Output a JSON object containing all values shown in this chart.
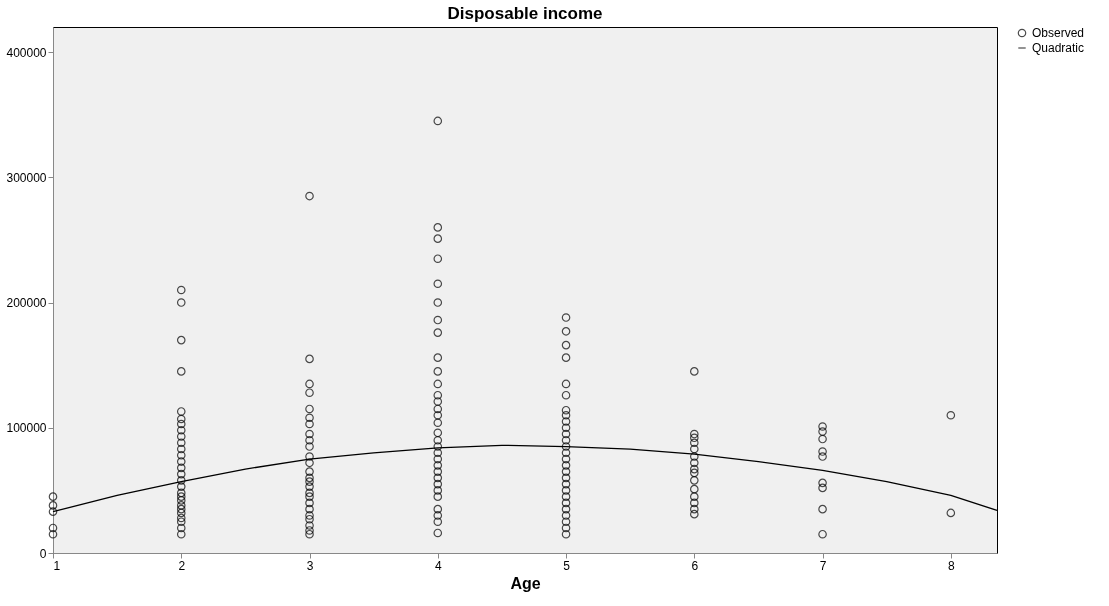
{
  "chart_data": {
    "type": "scatter",
    "title": "Disposable income",
    "xlabel": "Age",
    "xlim": [
      1,
      8.36
    ],
    "xticks": [
      1,
      2,
      3,
      4,
      5,
      6,
      7,
      8
    ],
    "ylim": [
      0,
      420000
    ],
    "yticks": [
      0,
      100000,
      200000,
      300000,
      400000
    ],
    "series": [
      {
        "name": "Observed",
        "color": "#000000",
        "marker": "circle",
        "x": [
          1,
          1,
          1,
          1,
          1,
          2,
          2,
          2,
          2,
          2,
          2,
          2,
          2,
          2,
          2,
          2,
          2,
          2,
          2,
          2,
          2,
          2,
          2,
          2,
          2,
          2,
          2,
          2,
          2,
          2,
          2,
          2,
          3,
          3,
          3,
          3,
          3,
          3,
          3,
          3,
          3,
          3,
          3,
          3,
          3,
          3,
          3,
          3,
          3,
          3,
          3,
          3,
          3,
          3,
          3,
          3,
          3,
          4,
          4,
          4,
          4,
          4,
          4,
          4,
          4,
          4,
          4,
          4,
          4,
          4,
          4,
          4,
          4,
          4,
          4,
          4,
          4,
          4,
          4,
          4,
          4,
          4,
          4,
          4,
          4,
          4,
          4,
          4,
          5,
          5,
          5,
          5,
          5,
          5,
          5,
          5,
          5,
          5,
          5,
          5,
          5,
          5,
          5,
          5,
          5,
          5,
          5,
          5,
          5,
          5,
          5,
          5,
          5,
          5,
          5,
          6,
          6,
          6,
          6,
          6,
          6,
          6,
          6,
          6,
          6,
          6,
          6,
          6,
          6,
          6,
          7,
          7,
          7,
          7,
          7,
          7,
          7,
          7,
          7,
          8,
          8
        ],
        "values": [
          45000,
          38000,
          33000,
          20000,
          15000,
          210000,
          200000,
          170000,
          145000,
          113000,
          107000,
          103000,
          98000,
          93000,
          88000,
          83000,
          78000,
          73000,
          68000,
          63000,
          58000,
          53000,
          48000,
          45000,
          42000,
          38000,
          35000,
          32000,
          28000,
          25000,
          20000,
          15000,
          285000,
          155000,
          135000,
          128000,
          115000,
          108000,
          103000,
          95000,
          90000,
          85000,
          77000,
          72000,
          65000,
          60000,
          57000,
          53000,
          48000,
          45000,
          40000,
          35000,
          30000,
          27000,
          22000,
          18000,
          15000,
          345000,
          260000,
          251000,
          235000,
          215000,
          200000,
          186000,
          176000,
          156000,
          145000,
          135000,
          126000,
          121000,
          115000,
          110000,
          104000,
          96000,
          90000,
          85000,
          80000,
          75000,
          70000,
          65000,
          60000,
          55000,
          50000,
          45000,
          35000,
          30000,
          25000,
          16000,
          188000,
          177000,
          166000,
          156000,
          135000,
          126000,
          114000,
          110000,
          105000,
          100000,
          95000,
          90000,
          85000,
          80000,
          75000,
          70000,
          65000,
          60000,
          55000,
          50000,
          45000,
          40000,
          35000,
          30000,
          25000,
          20000,
          15000,
          145000,
          95000,
          92000,
          88000,
          83000,
          77000,
          72000,
          67000,
          64000,
          58000,
          51000,
          45000,
          40000,
          35000,
          31000,
          101000,
          97000,
          91000,
          81000,
          77000,
          56000,
          52000,
          35000,
          15000,
          110000,
          32000
        ]
      },
      {
        "name": "Quadratic",
        "type": "line",
        "color": "#000000",
        "line_style": "solid",
        "x": [
          1,
          1.5,
          2,
          2.5,
          3,
          3.5,
          4,
          4.5,
          5,
          5.5,
          6,
          6.5,
          7,
          7.5,
          8,
          8.36
        ],
        "values": [
          33000,
          46000,
          57000,
          67000,
          75000,
          80000,
          84000,
          86000,
          85000,
          83000,
          79000,
          73000,
          66000,
          57000,
          46000,
          34000
        ]
      }
    ],
    "legend": "top right",
    "grid": false
  }
}
